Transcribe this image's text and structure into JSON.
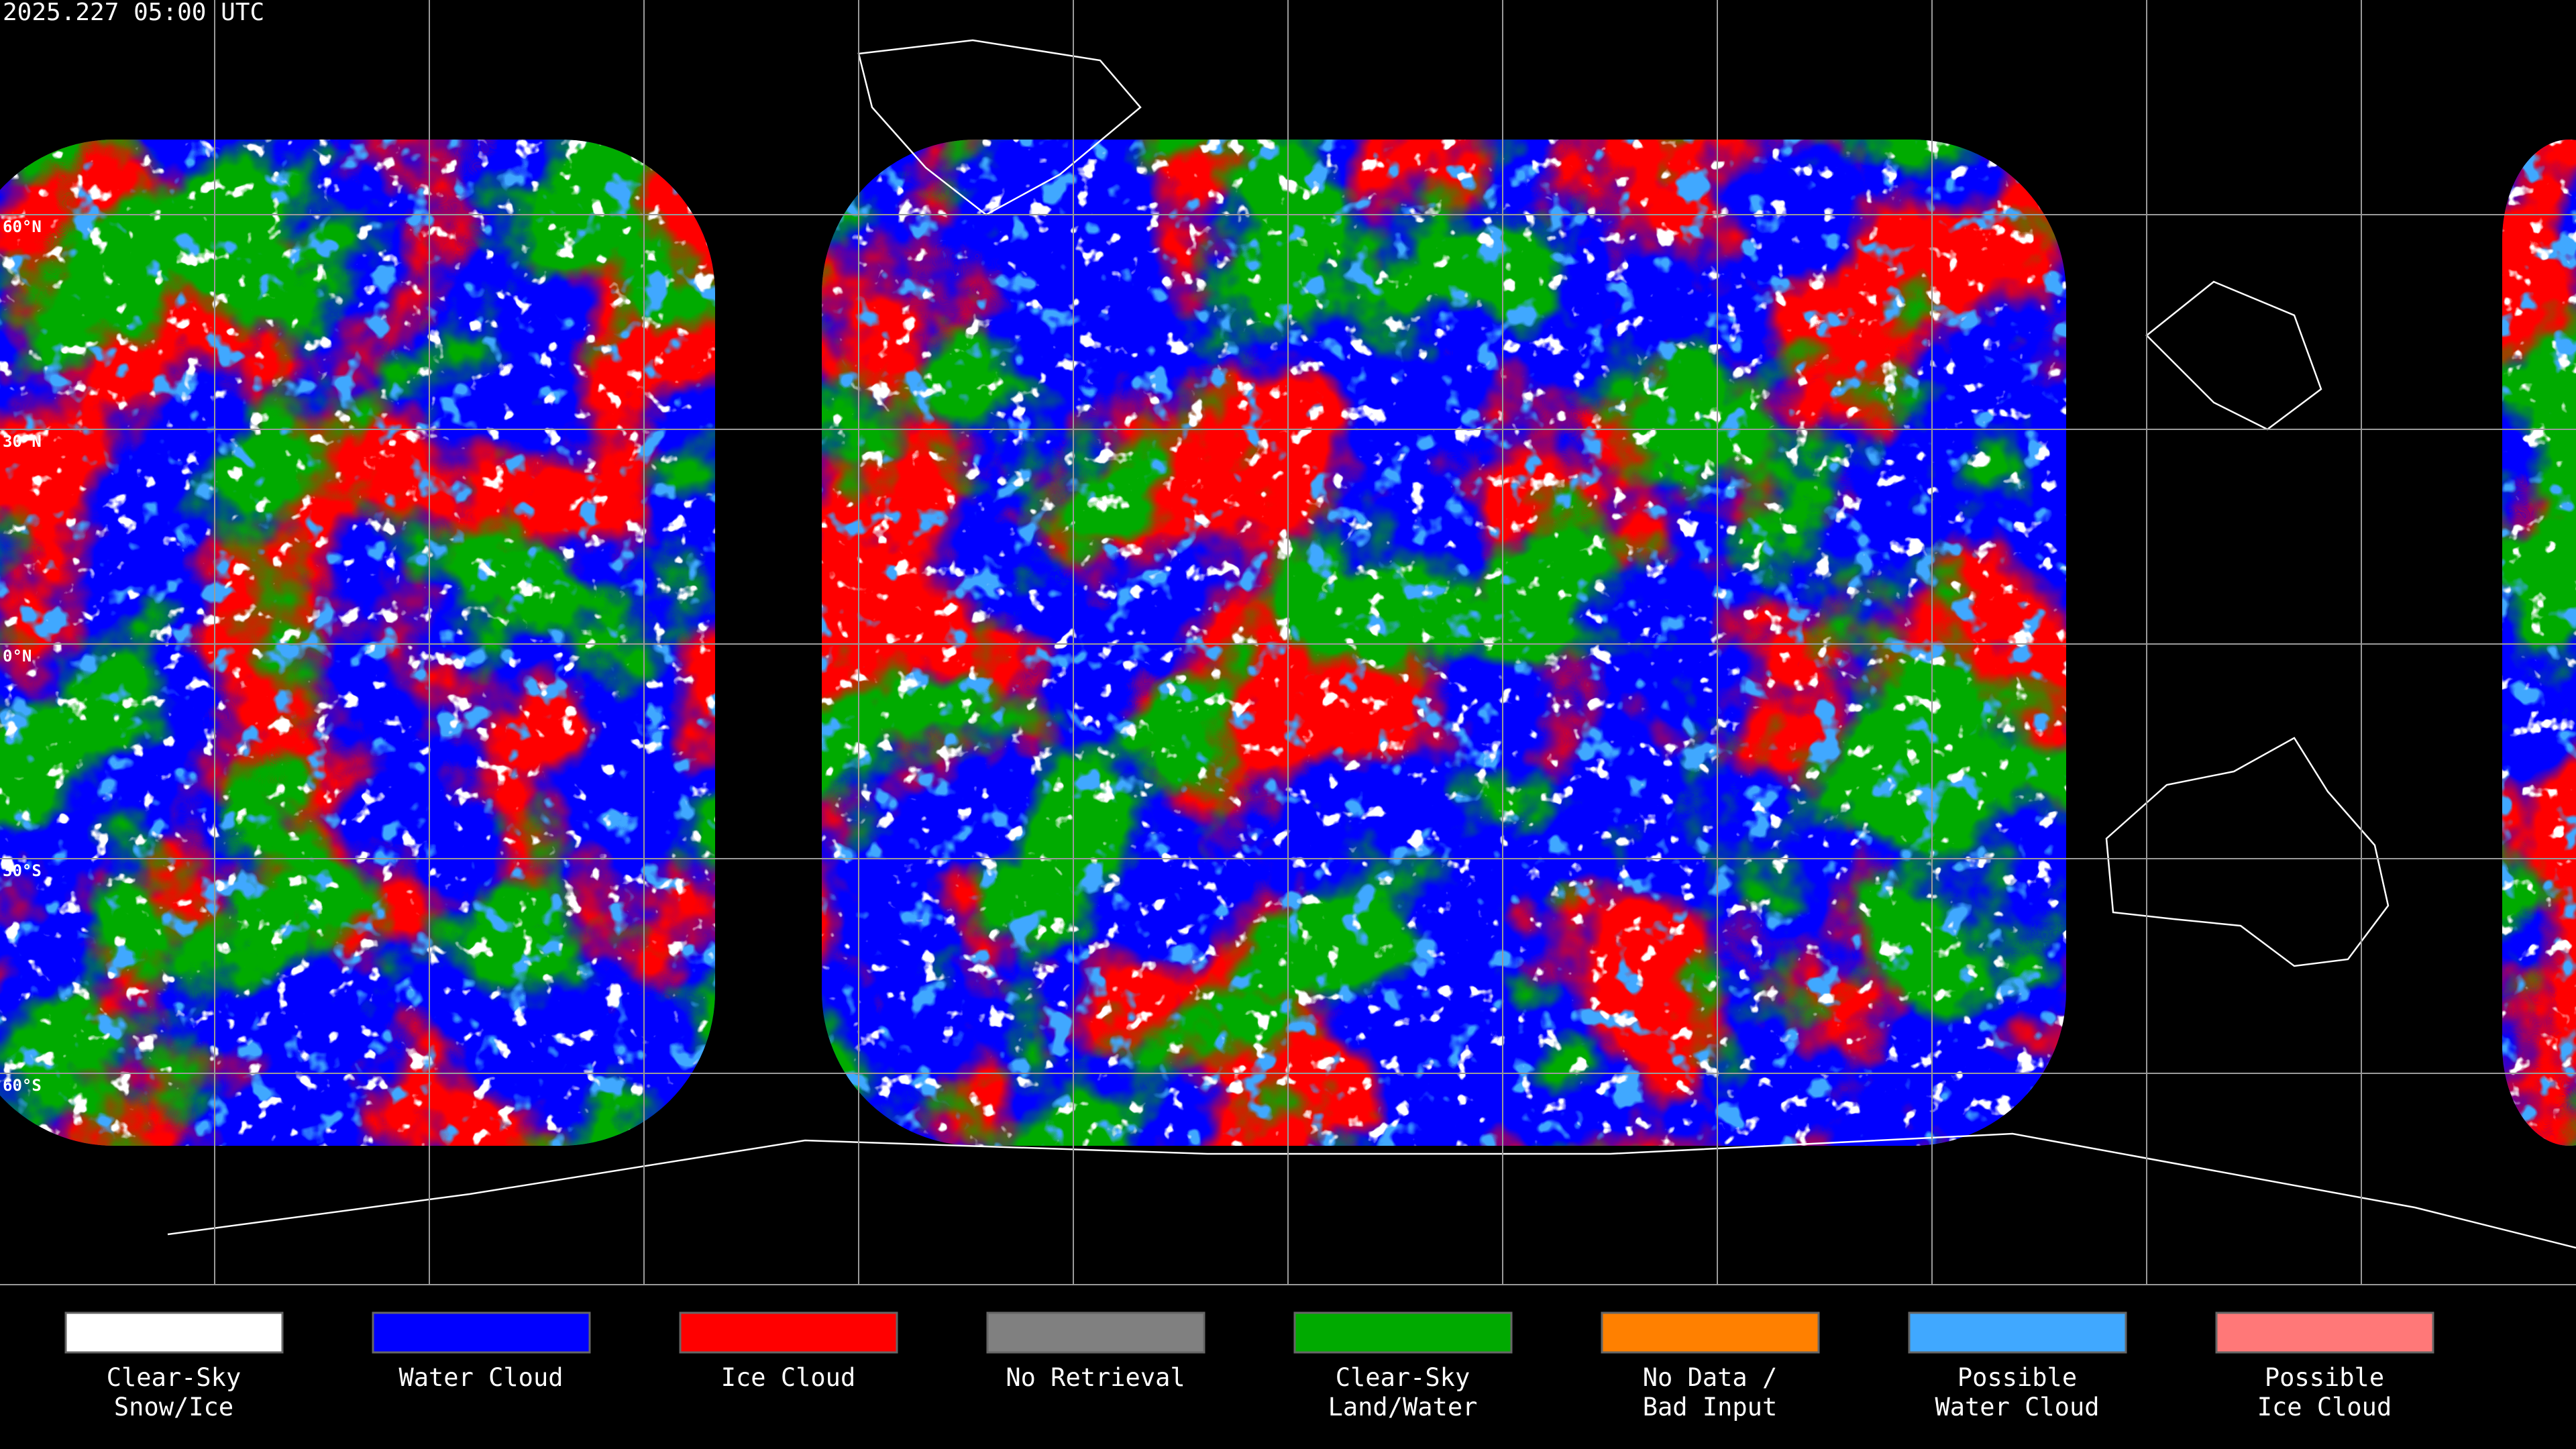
{
  "header": {
    "title": "2025.227 05:00 UTC"
  },
  "map": {
    "latitude_labels": [
      "60°N",
      "30°N",
      "0°N",
      "30°S",
      "60°S"
    ]
  },
  "legend": {
    "items": [
      {
        "label": [
          "Clear-Sky",
          "Snow/Ice"
        ],
        "color": "#ffffff"
      },
      {
        "label": [
          "Water Cloud"
        ],
        "color": "#0000ff"
      },
      {
        "label": [
          "Ice Cloud"
        ],
        "color": "#ff0000"
      },
      {
        "label": [
          "No Retrieval"
        ],
        "color": "#808080"
      },
      {
        "label": [
          "Clear-Sky",
          "Land/Water"
        ],
        "color": "#00aa00"
      },
      {
        "label": [
          "No Data /",
          "Bad Input"
        ],
        "color": "#ff8000"
      },
      {
        "label": [
          "Possible",
          "Water Cloud"
        ],
        "color": "#40a8ff"
      },
      {
        "label": [
          "Possible",
          "Ice Cloud"
        ],
        "color": "#ff7878"
      }
    ]
  }
}
